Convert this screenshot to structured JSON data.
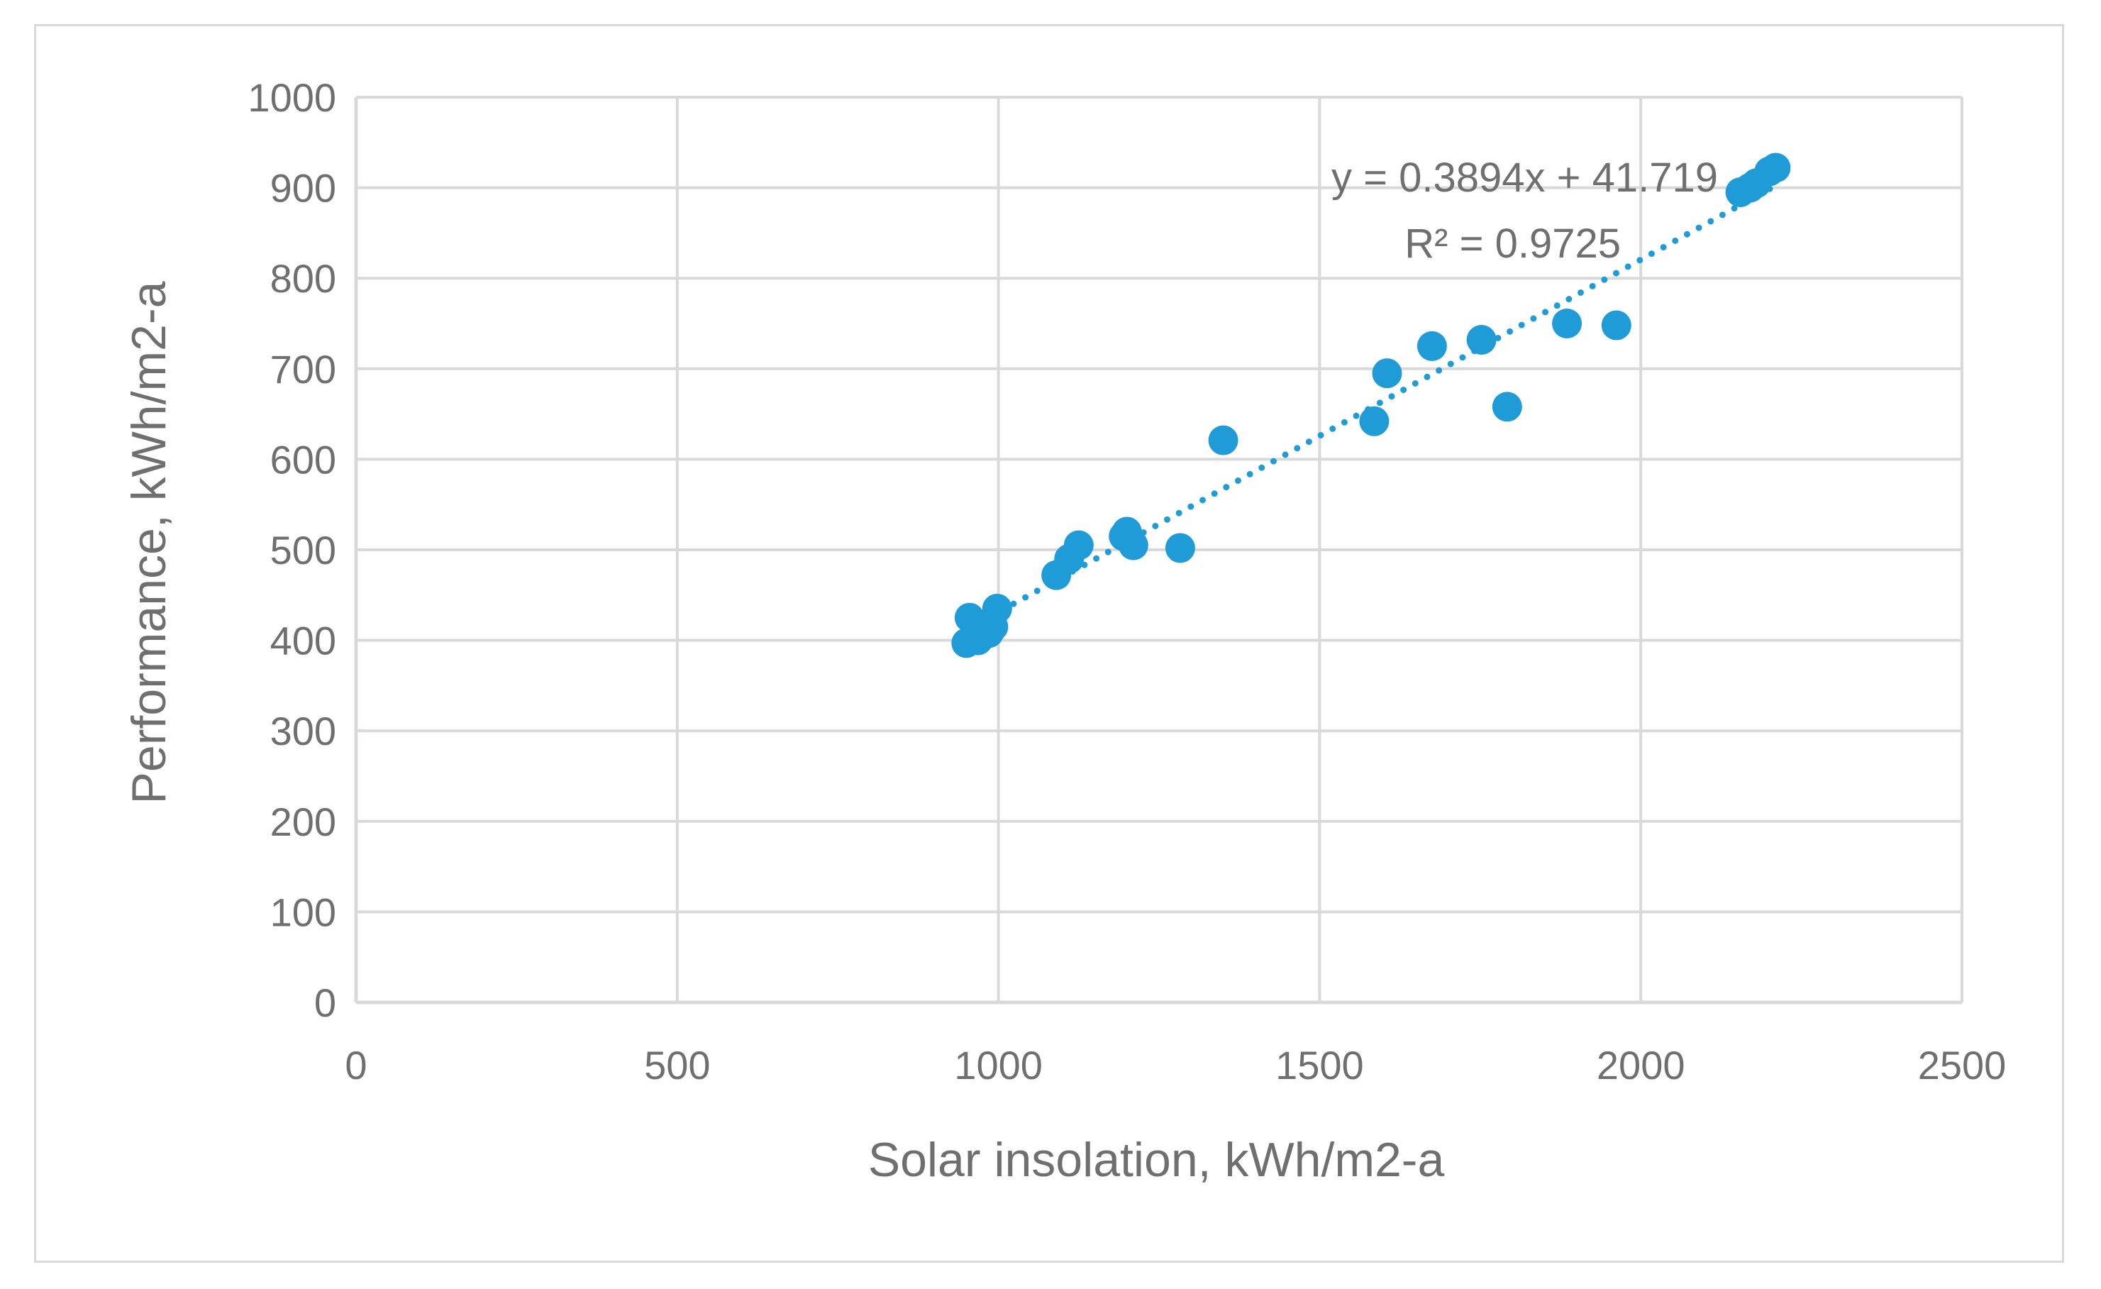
{
  "chart_data": {
    "type": "scatter",
    "title": "",
    "xlabel": "Solar insolation, kWh/m2-a",
    "ylabel": "Performance, kWh/m2-a",
    "xlim": [
      0,
      2500
    ],
    "ylim": [
      0,
      1000
    ],
    "x_ticks": [
      0,
      500,
      1000,
      1500,
      2000,
      2500
    ],
    "y_ticks": [
      0,
      100,
      200,
      300,
      400,
      500,
      600,
      700,
      800,
      900,
      1000
    ],
    "x_tick_labels": [
      "0",
      "500",
      "1000",
      "1500",
      "2000",
      "2500"
    ],
    "y_tick_labels": [
      "0",
      "100",
      "200",
      "300",
      "400",
      "500",
      "600",
      "700",
      "800",
      "900",
      "1000"
    ],
    "grid": true,
    "marker_color": "#1f9bd7",
    "series": [
      {
        "name": "Performance",
        "x": [
          950,
          955,
          968,
          975,
          985,
          992,
          998,
          1090,
          1110,
          1125,
          1195,
          1200,
          1210,
          1283,
          1350,
          1585,
          1605,
          1675,
          1752,
          1792,
          1885,
          1962,
          2155,
          2170,
          2180,
          2200,
          2210
        ],
        "y": [
          397,
          425,
          400,
          405,
          408,
          415,
          435,
          472,
          490,
          505,
          515,
          520,
          505,
          502,
          621,
          642,
          695,
          725,
          732,
          658,
          750,
          748,
          895,
          900,
          905,
          918,
          922
        ]
      }
    ],
    "trendline": {
      "type": "linear",
      "slope": 0.3894,
      "intercept": 41.719,
      "x_range": [
        950,
        2210
      ],
      "style": "dotted",
      "equation_label": "y = 0.3894x + 41.719",
      "r2_label": "R² = 0.9725"
    }
  }
}
